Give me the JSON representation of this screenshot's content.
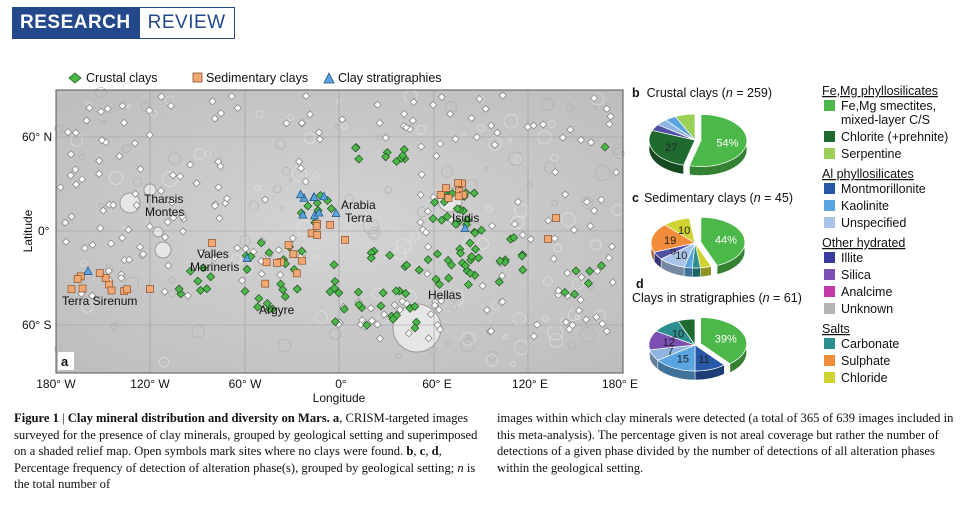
{
  "header": {
    "research": "RESEARCH",
    "review": "REVIEW"
  },
  "legend": {
    "crustal": "Crustal clays",
    "sedimentary": "Sedimentary clays",
    "stratigraphy": "Clay stratigraphies"
  },
  "map": {
    "panel_label": "a",
    "ylabel": "Latitude",
    "xlabel": "Longitude",
    "lat_ticks": [
      "60° N",
      "0°",
      "60° S"
    ],
    "lon_ticks": [
      "180° W",
      "120° W",
      "60° W",
      "0°",
      "60° E",
      "120° E",
      "180° E"
    ],
    "regions": [
      "Tharsis Montes",
      "Valles Marineris",
      "Terra Sirenum",
      "Argyre",
      "Arabia Terra",
      "Isidis",
      "Hellas"
    ]
  },
  "panels": {
    "b": {
      "letter": "b",
      "title_pre": "Crustal clays (",
      "n": "n",
      "title_post": " = 259)"
    },
    "c": {
      "letter": "c",
      "title_pre": "Sedimentary clays (",
      "n": "n",
      "title_post": " = 45)"
    },
    "d": {
      "letter": "d",
      "title_pre": "Clays in stratigraphies (",
      "n": "n",
      "title_post": " = 61)"
    }
  },
  "chart_data": [
    {
      "type": "pie",
      "title": "Crustal clays (n = 259)",
      "slices": [
        {
          "label": "54%",
          "value": 54,
          "color": "#4cb849"
        },
        {
          "label": "27",
          "value": 27,
          "color": "#1f6b2f"
        },
        {
          "label": "",
          "value": 4,
          "color": "#4f4fa5"
        },
        {
          "label": "",
          "value": 4,
          "color": "#8fb4e0"
        },
        {
          "label": "",
          "value": 4,
          "color": "#5aa4df"
        },
        {
          "label": "",
          "value": 7,
          "color": "#9ad056"
        }
      ]
    },
    {
      "type": "pie",
      "title": "Sedimentary clays (n = 45)",
      "slices": [
        {
          "label": "44%",
          "value": 44,
          "color": "#4cb849"
        },
        {
          "label": "",
          "value": 4,
          "color": "#cfd331"
        },
        {
          "label": "",
          "value": 3,
          "color": "#2b8f8f"
        },
        {
          "label": "",
          "value": 3,
          "color": "#5aa4df"
        },
        {
          "label": "10",
          "value": 10,
          "color": "#a9c4e8"
        },
        {
          "label": "5",
          "value": 5,
          "color": "#4f4fa5"
        },
        {
          "label": "19",
          "value": 19,
          "color": "#f08c3a"
        },
        {
          "label": "10",
          "value": 10,
          "color": "#cfd331"
        },
        {
          "label": "",
          "value": 2,
          "color": "#ffffff"
        }
      ]
    },
    {
      "type": "pie",
      "title": "Clays in stratigraphies (n = 61)",
      "slices": [
        {
          "label": "39%",
          "value": 39,
          "color": "#4cb849"
        },
        {
          "label": "11",
          "value": 11,
          "color": "#2857a8"
        },
        {
          "label": "15",
          "value": 15,
          "color": "#5aa4df"
        },
        {
          "label": "7",
          "value": 7,
          "color": "#8fb4e0"
        },
        {
          "label": "12",
          "value": 12,
          "color": "#7c4fb3"
        },
        {
          "label": "10",
          "value": 10,
          "color": "#2b8f8f"
        },
        {
          "label": "",
          "value": 6,
          "color": "#1f6b2f"
        }
      ]
    }
  ],
  "mineral_legend": {
    "groups": [
      {
        "header": "Fe,Mg phyllosilicates",
        "items": [
          {
            "label": "Fe,Mg smectites,",
            "label2": "mixed-layer C/S",
            "color": "#4cb849"
          },
          {
            "label": "Chlorite (+prehnite)",
            "color": "#1f6b2f"
          },
          {
            "label": "Serpentine",
            "color": "#9ad056"
          }
        ]
      },
      {
        "header": "Al phyllosilicates",
        "items": [
          {
            "label": "Montmorillonite",
            "color": "#2857a8"
          },
          {
            "label": "Kaolinite",
            "color": "#5aa4df"
          },
          {
            "label": "Unspecified",
            "color": "#a9c4e8"
          }
        ]
      },
      {
        "header": "Other hydrated",
        "items": [
          {
            "label": "Illite",
            "color": "#3a3aa0"
          },
          {
            "label": "Silica",
            "color": "#7c4fb3"
          },
          {
            "label": "Analcime",
            "color": "#c23aa8"
          },
          {
            "label": "Unknown",
            "color": "#b5b5b5"
          }
        ]
      },
      {
        "header": "Salts",
        "items": [
          {
            "label": "Carbonate",
            "color": "#2b8f8f"
          },
          {
            "label": "Sulphate",
            "color": "#f08c3a"
          },
          {
            "label": "Chloride",
            "color": "#cfd331"
          }
        ]
      }
    ]
  },
  "caption": {
    "fig_label": "Figure 1",
    "sep": " | ",
    "fig_title": "Clay mineral distribution and diversity on Mars.",
    "a_letter": "a",
    "text_a": ", CRISM-targeted images surveyed for the presence of clay minerals, grouped by geological setting and superimposed on a shaded relief map. Open symbols mark sites where no clays were found. ",
    "bcd_letters": "b",
    "comma1": ", ",
    "c_letter": "c",
    "comma2": ", ",
    "d_letter": "d",
    "text_b": ", Percentage frequency of detection of alteration phase(s), grouped by geological setting; ",
    "n_italic": "n",
    "text_c": " is the total number of",
    "right_text": "images within which clay minerals were detected (a total of 365 of 639 images included in this meta-analysis). The percentage given is not areal coverage but rather the number of detections of a given phase divided by the number of detections of all alteration phases within the geological setting."
  }
}
